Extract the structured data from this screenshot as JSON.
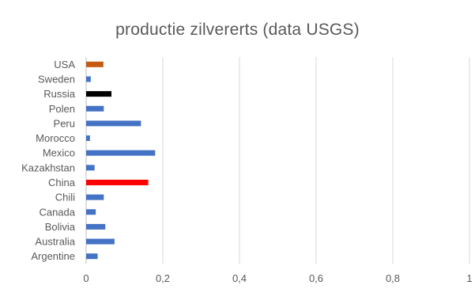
{
  "chart_data": {
    "type": "bar",
    "orientation": "horizontal",
    "title": "productie zilvererts (data USGS)",
    "xlabel": "",
    "ylabel": "",
    "categories": [
      "Argentine",
      "Australia",
      "Bolivia",
      "Canada",
      "Chili",
      "China",
      "Kazakhstan",
      "Mexico",
      "Morocco",
      "Peru",
      "Polen",
      "Russia",
      "Sweden",
      "USA"
    ],
    "values": [
      0.03,
      0.074,
      0.05,
      0.025,
      0.046,
      0.162,
      0.022,
      0.18,
      0.01,
      0.143,
      0.046,
      0.066,
      0.012,
      0.045
    ],
    "bar_colors": [
      "#4472C4",
      "#4472C4",
      "#4472C4",
      "#4472C4",
      "#4472C4",
      "#FF0000",
      "#4472C4",
      "#4472C4",
      "#4472C4",
      "#4472C4",
      "#4472C4",
      "#000000",
      "#4472C4",
      "#C55A11"
    ],
    "xlim": [
      0,
      1
    ],
    "xticks": [
      0,
      0.2,
      0.4,
      0.6,
      0.8,
      1
    ],
    "xtick_labels": [
      "0",
      "0,2",
      "0,4",
      "0,6",
      "0,8",
      "1"
    ],
    "grid": "vertical",
    "legend": "none"
  }
}
